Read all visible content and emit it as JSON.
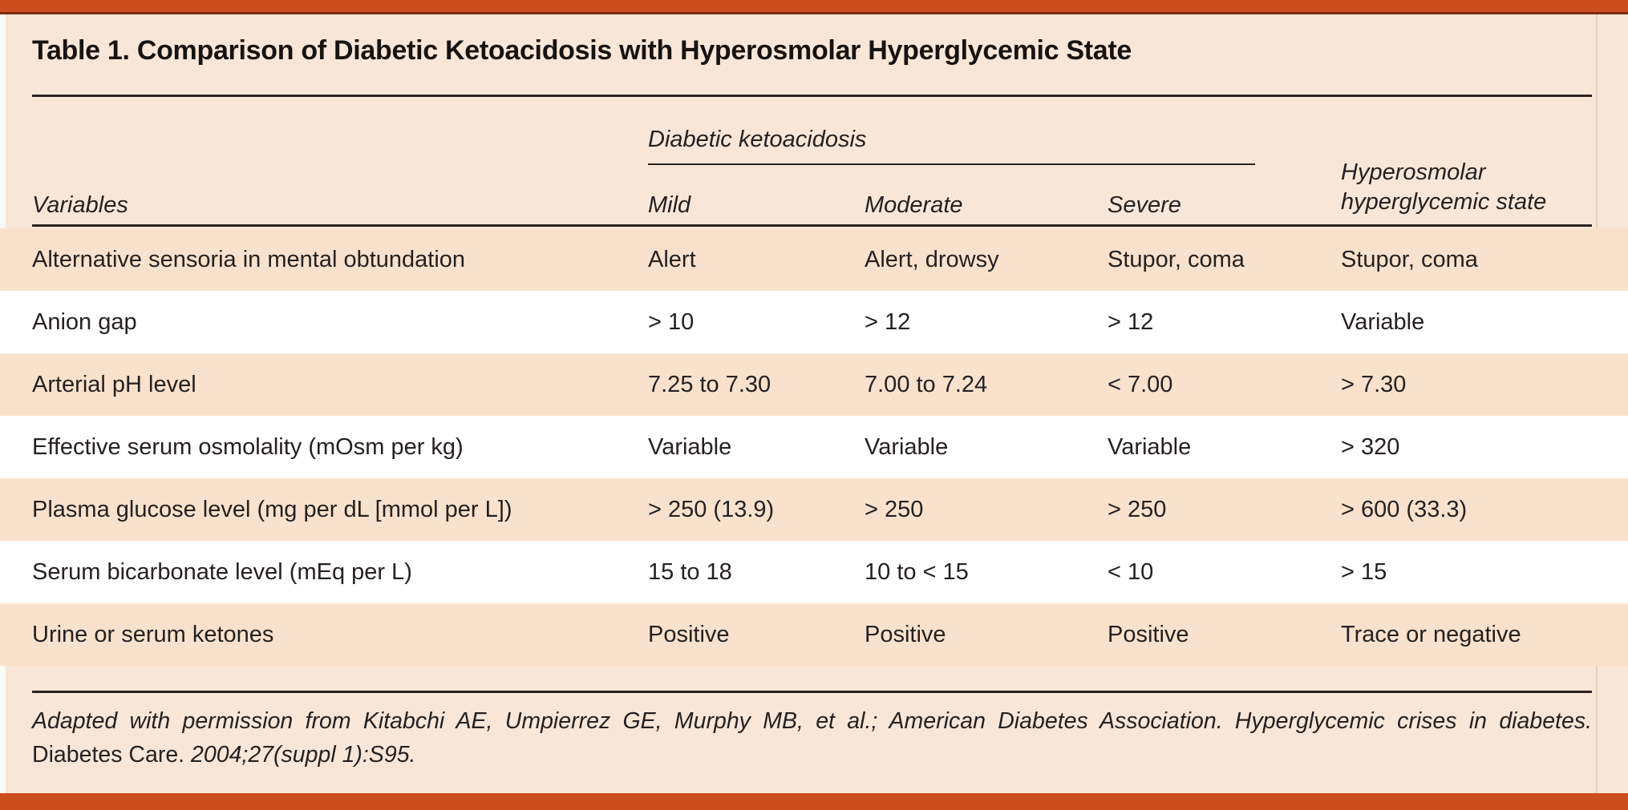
{
  "colors": {
    "accent_bar": "#CC4D1E",
    "accent_bar_dark_edge": "#7D2B11",
    "page_background": "#F8E7D8",
    "row_stripe": "#F9E2CD",
    "text": "#262120"
  },
  "page": {
    "title": "Table 1. Comparison of Diabetic Ketoacidosis with Hyperosmolar Hyperglycemic State"
  },
  "table": {
    "group_header": "Diabetic ketoacidosis",
    "variables_header": "Variables",
    "severity_headers": [
      "Mild",
      "Moderate",
      "Severe"
    ],
    "hhs_header": {
      "line1": "Hyperosmolar",
      "line2": "hyperglycemic state",
      "full": "Hyperosmolar hyperglycemic state"
    },
    "rows": [
      {
        "cells": [
          "Alternative sensoria in mental obtundation",
          "Alert",
          "Alert, drowsy",
          "Stupor, coma",
          "Stupor, coma"
        ]
      },
      {
        "cells": [
          "Anion gap",
          "> 10",
          "> 12",
          "> 12",
          "Variable"
        ]
      },
      {
        "cells": [
          "Arterial pH level",
          "7.25 to 7.30",
          "7.00 to 7.24",
          "< 7.00",
          "> 7.30"
        ]
      },
      {
        "cells": [
          "Effective serum osmolality (mOsm per kg)",
          "Variable",
          "Variable",
          "Variable",
          "> 320"
        ]
      },
      {
        "cells": [
          "Plasma glucose level (mg per dL [mmol per L])",
          "> 250 (13.9)",
          "> 250",
          "> 250",
          "> 600 (33.3)"
        ]
      },
      {
        "cells": [
          "Serum bicarbonate level (mEq per L)",
          "15 to 18",
          "10 to < 15",
          "< 10",
          "> 15"
        ]
      },
      {
        "cells": [
          "Urine or serum ketones",
          "Positive",
          "Positive",
          "Positive",
          "Trace or negative"
        ]
      }
    ]
  },
  "footnote": {
    "line1": "Adapted with permission from Kitabchi AE, Umpierrez GE, Murphy MB, et al.; American Diabetes Association. Hyperglycemic crises in diabetes.",
    "journal": "Diabetes Care.",
    "citation": "2004;27(suppl 1):S95."
  }
}
